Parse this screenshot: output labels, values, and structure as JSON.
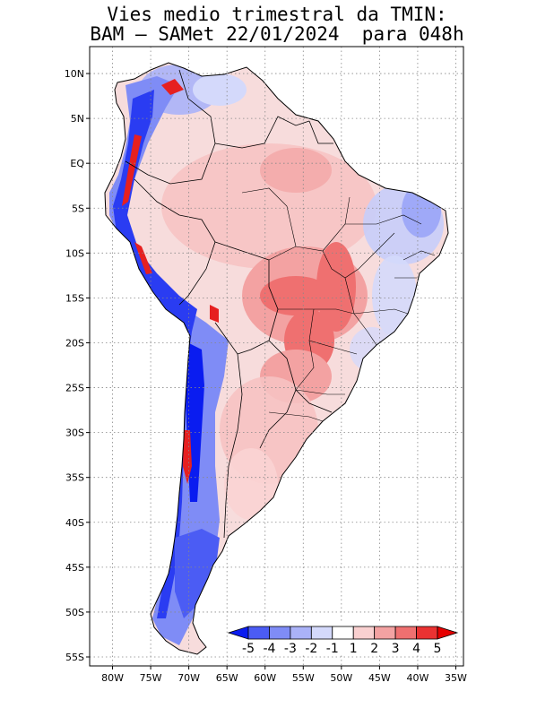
{
  "title_line1": "Vies medio trimestral da TMIN:",
  "title_line2": "BAM – SAMet 22/01/2024  para 048h",
  "map": {
    "lon_range": [
      -83,
      -34
    ],
    "lat_range": [
      -56,
      13
    ],
    "lat_ticks": [
      {
        "value": 10,
        "label": "10N"
      },
      {
        "value": 5,
        "label": "5N"
      },
      {
        "value": 0,
        "label": "EQ"
      },
      {
        "value": -5,
        "label": "5S"
      },
      {
        "value": -10,
        "label": "10S"
      },
      {
        "value": -15,
        "label": "15S"
      },
      {
        "value": -20,
        "label": "20S"
      },
      {
        "value": -25,
        "label": "25S"
      },
      {
        "value": -30,
        "label": "30S"
      },
      {
        "value": -35,
        "label": "35S"
      },
      {
        "value": -40,
        "label": "40S"
      },
      {
        "value": -45,
        "label": "45S"
      },
      {
        "value": -50,
        "label": "50S"
      },
      {
        "value": -55,
        "label": "55S"
      }
    ],
    "lon_ticks": [
      {
        "value": -80,
        "label": "80W"
      },
      {
        "value": -75,
        "label": "75W"
      },
      {
        "value": -70,
        "label": "70W"
      },
      {
        "value": -65,
        "label": "65W"
      },
      {
        "value": -60,
        "label": "60W"
      },
      {
        "value": -55,
        "label": "55W"
      },
      {
        "value": -50,
        "label": "50W"
      },
      {
        "value": -45,
        "label": "45W"
      },
      {
        "value": -40,
        "label": "40W"
      },
      {
        "value": -35,
        "label": "35W"
      }
    ],
    "grid": "dotted"
  },
  "colorbar": {
    "levels": [
      "-5",
      "-4",
      "-3",
      "-2",
      "-1",
      "1",
      "2",
      "3",
      "4",
      "5"
    ],
    "colors": [
      "#0a1cf0",
      "#4b5cf4",
      "#7f8cf6",
      "#aab2f8",
      "#d4d9fb",
      "#ffffff",
      "#f9d0d0",
      "#f3a2a2",
      "#ef7070",
      "#ea3232",
      "#e60000"
    ]
  }
}
